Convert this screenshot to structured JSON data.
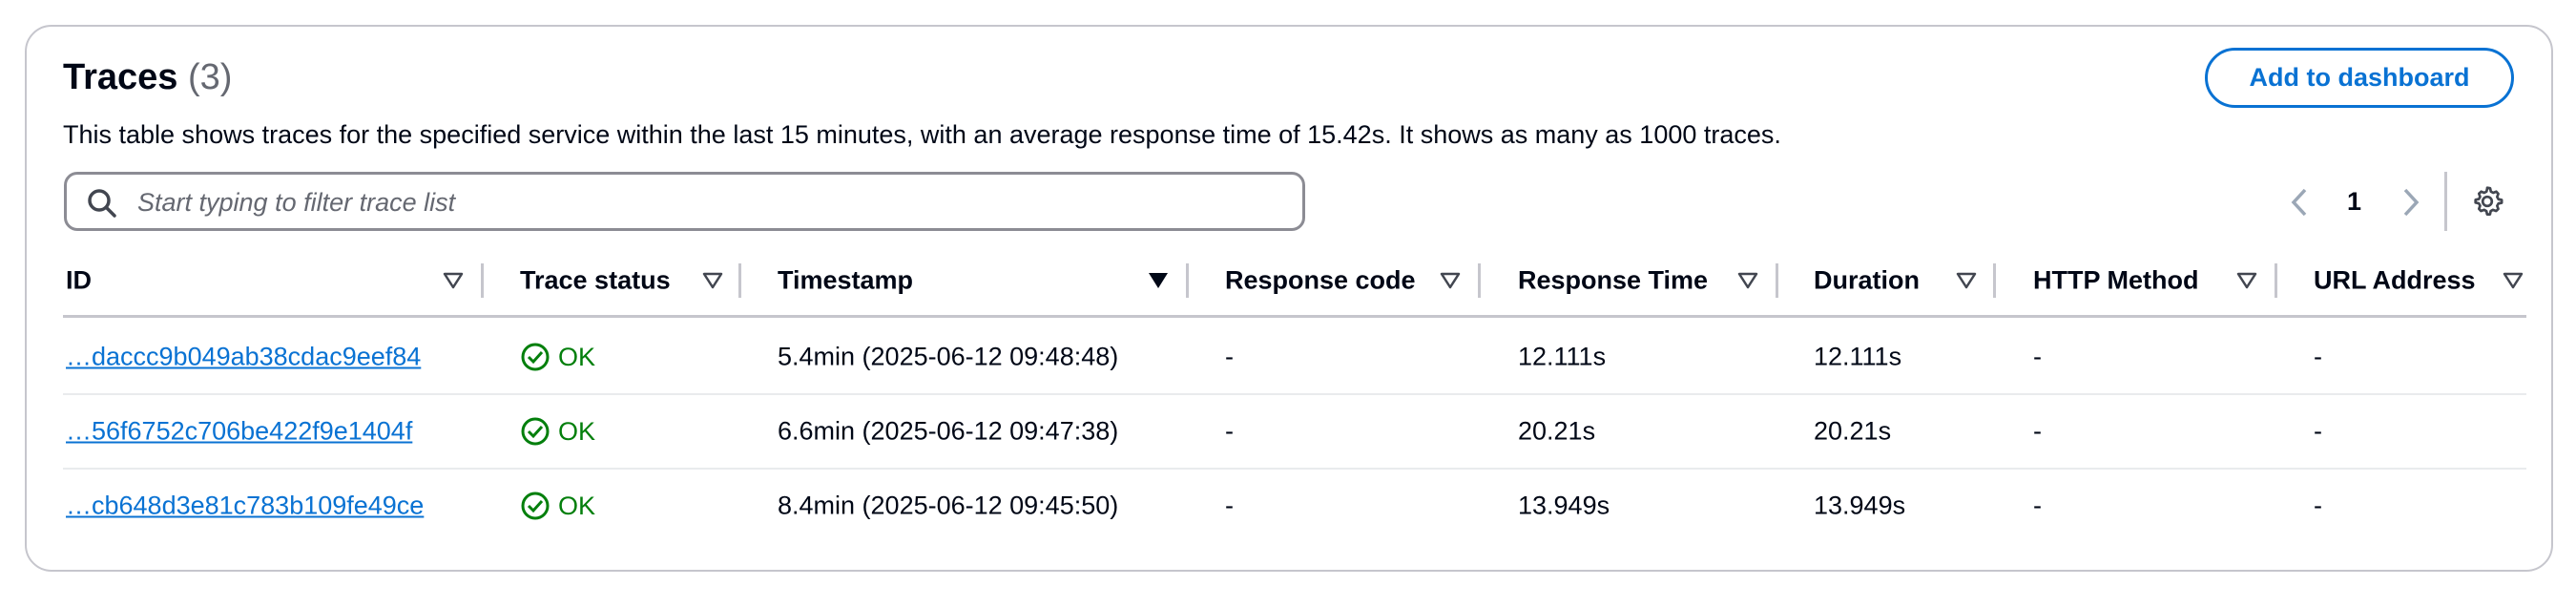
{
  "header": {
    "title": "Traces",
    "count": "(3)",
    "description": "This table shows traces for the specified service within the last 15 minutes, with an average response time of 15.42s. It shows as many as 1000 traces.",
    "button": "Add to dashboard"
  },
  "search": {
    "placeholder": "Start typing to filter trace list"
  },
  "pagination": {
    "page": "1"
  },
  "table": {
    "columns": [
      "ID",
      "Trace status",
      "Timestamp",
      "Response code",
      "Response Time",
      "Duration",
      "HTTP Method",
      "URL Address"
    ],
    "rows": [
      [
        "…daccc9b049ab38cdac9eef84",
        "OK",
        "5.4min (2025-06-12 09:48:48)",
        "-",
        "12.111s",
        "12.111s",
        "-",
        "-"
      ],
      [
        "…56f6752c706be422f9e1404f",
        "OK",
        "6.6min (2025-06-12 09:47:38)",
        "-",
        "20.21s",
        "20.21s",
        "-",
        "-"
      ],
      [
        "…cb648d3e81c783b109fe49ce",
        "OK",
        "8.4min (2025-06-12 09:45:50)",
        "-",
        "13.949s",
        "13.949s",
        "-",
        "-"
      ]
    ]
  }
}
